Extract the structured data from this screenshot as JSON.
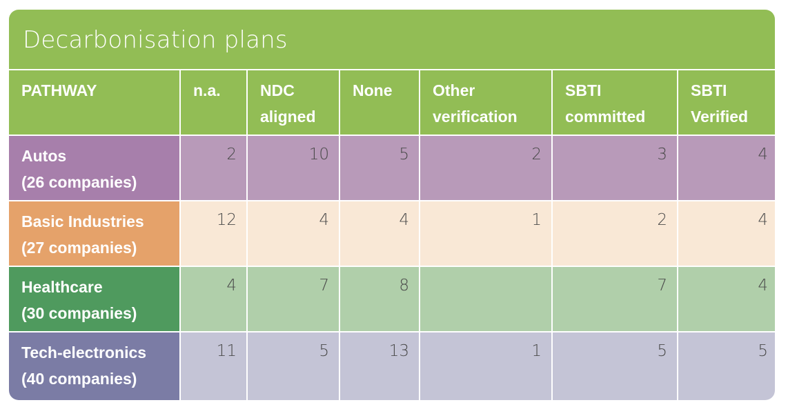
{
  "title": "Decarbonisation plans",
  "chart_data": {
    "type": "table",
    "title": "Decarbonisation plans",
    "columns": [
      "PATHWAY",
      "n.a.",
      "NDC\naligned",
      "None",
      "Other\nverification",
      "SBTI\ncommitted",
      "SBTI\nVerified"
    ],
    "rows": [
      {
        "name": "Autos",
        "sub": "(26 companies)",
        "values": [
          "2",
          "10",
          "5",
          "2",
          "3",
          "4"
        ]
      },
      {
        "name": "Basic Industries",
        "sub": "(27 companies)",
        "values": [
          "12",
          "4",
          "4",
          "1",
          "2",
          "4"
        ]
      },
      {
        "name": "Healthcare",
        "sub": "(30 companies)",
        "values": [
          "4",
          "7",
          "8",
          "",
          "7",
          "4"
        ]
      },
      {
        "name": "Tech-electronics",
        "sub": "(40 companies)",
        "values": [
          "11",
          "5",
          "13",
          "1",
          "5",
          "5"
        ]
      }
    ]
  },
  "colors": {
    "header": "#92bd55",
    "rows": [
      {
        "label": "#a77fab",
        "cell": "#b89ab9"
      },
      {
        "label": "#e5a26a",
        "cell": "#f9e8d6"
      },
      {
        "label": "#4f9a5e",
        "cell": "#b0cfaa"
      },
      {
        "label": "#7b7ca5",
        "cell": "#c4c4d6"
      }
    ]
  }
}
